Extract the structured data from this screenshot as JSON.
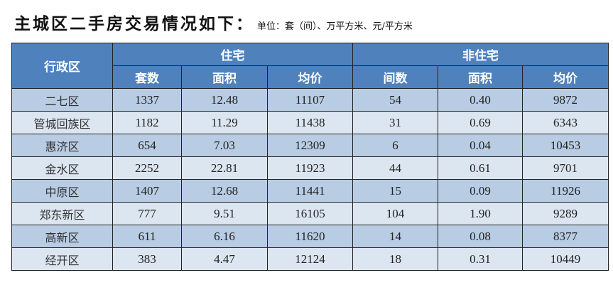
{
  "title": "主城区二手房交易情况如下：",
  "unit": "单位：套（间）、万平方米、元/平方米",
  "colors": {
    "header": "#4f81bd",
    "row_dark": "#b8cce4",
    "row_light": "#dce6f1"
  },
  "headers": {
    "district": "行政区",
    "residential": "住宅",
    "non_residential": "非住宅",
    "sub": [
      "套数",
      "面积",
      "均价",
      "间数",
      "面积",
      "均价"
    ]
  },
  "rows": [
    [
      "二七区",
      "1337",
      "12.48",
      "11107",
      "54",
      "0.40",
      "9872"
    ],
    [
      "管城回族区",
      "1182",
      "11.29",
      "11438",
      "31",
      "0.69",
      "6343"
    ],
    [
      "惠济区",
      "654",
      "7.03",
      "12309",
      "6",
      "0.04",
      "10453"
    ],
    [
      "金水区",
      "2252",
      "22.81",
      "11923",
      "44",
      "0.61",
      "9701"
    ],
    [
      "中原区",
      "1407",
      "12.68",
      "11441",
      "15",
      "0.09",
      "11926"
    ],
    [
      "郑东新区",
      "777",
      "9.51",
      "16105",
      "104",
      "1.90",
      "9289"
    ],
    [
      "高新区",
      "611",
      "6.16",
      "11620",
      "14",
      "0.08",
      "8377"
    ],
    [
      "经开区",
      "383",
      "4.47",
      "12124",
      "18",
      "0.31",
      "10449"
    ]
  ]
}
